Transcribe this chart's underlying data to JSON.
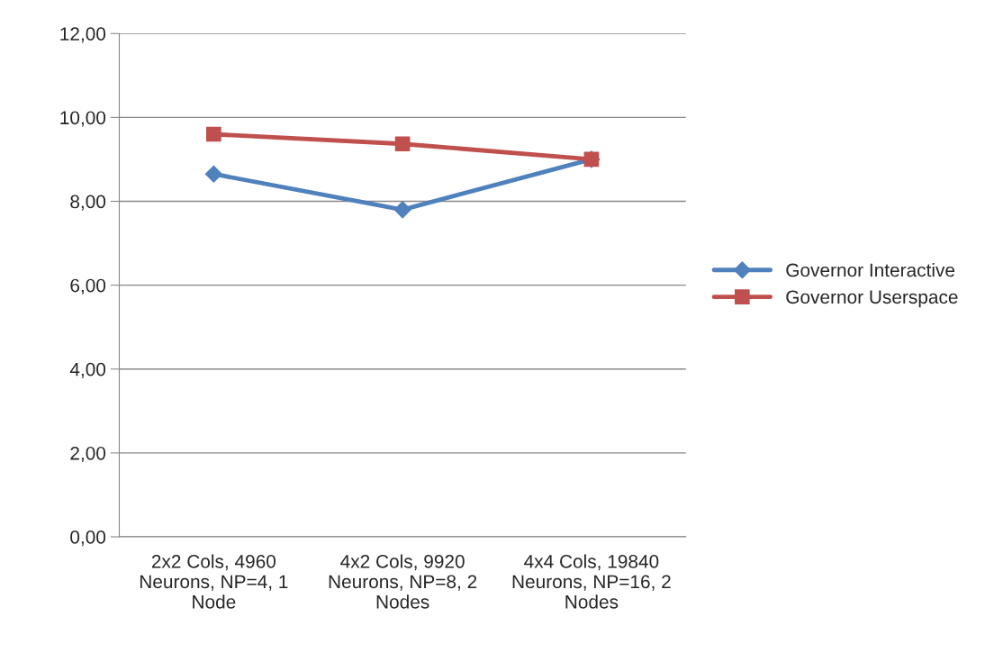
{
  "chart_data": {
    "type": "line",
    "categories": [
      "2x2 Cols, 4960\nNeurons, NP=4, 1\nNode",
      "4x2 Cols, 9920\nNeurons, NP=8, 2\nNodes",
      "4x4 Cols, 19840\nNeurons, NP=16, 2\nNodes"
    ],
    "series": [
      {
        "name": "Governor Interactive",
        "color": "#4f81bd",
        "marker": "diamond",
        "values": [
          8.65,
          7.8,
          9.0
        ]
      },
      {
        "name": "Governor Userspace",
        "color": "#c0504d",
        "marker": "square",
        "values": [
          9.6,
          9.37,
          9.0
        ]
      }
    ],
    "ylim": [
      0,
      12
    ],
    "yticks": [
      {
        "value": 0,
        "label": "0,00"
      },
      {
        "value": 2,
        "label": "2,00"
      },
      {
        "value": 4,
        "label": "4,00"
      },
      {
        "value": 6,
        "label": "6,00"
      },
      {
        "value": 8,
        "label": "8,00"
      },
      {
        "value": 10,
        "label": "10,00"
      },
      {
        "value": 12,
        "label": "12,00"
      }
    ],
    "grid": "y",
    "legend": "right"
  }
}
